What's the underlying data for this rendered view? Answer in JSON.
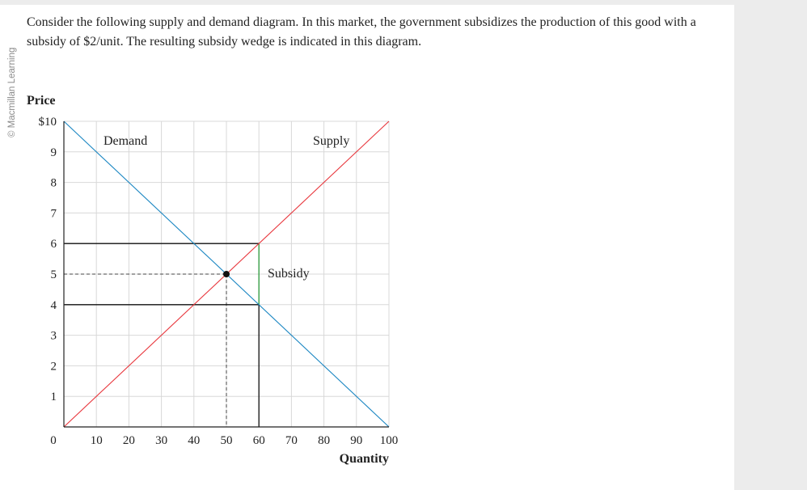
{
  "watermark": "© Macmillan Learning",
  "question": "Consider the following supply and demand diagram. In this market, the government subsidizes the production of this good with a subsidy of $2/unit. The resulting subsidy wedge is indicated in this diagram.",
  "colors": {
    "demand": "#1a86c2",
    "supply": "#e8363c",
    "wedge": "#2a9a3a",
    "grid": "#d8d8d8",
    "axis": "#222222"
  },
  "chart_data": {
    "type": "line",
    "title": "",
    "xlabel": "Quantity",
    "ylabel": "Price",
    "xlim": [
      0,
      100
    ],
    "ylim": [
      0,
      10
    ],
    "x_ticks": [
      0,
      10,
      20,
      30,
      40,
      50,
      60,
      70,
      80,
      90,
      100
    ],
    "x_tick_labels": [
      "0",
      "10",
      "20",
      "30",
      "40",
      "50",
      "60",
      "70",
      "80",
      "90",
      "100"
    ],
    "y_ticks": [
      1,
      2,
      3,
      4,
      5,
      6,
      7,
      8,
      9,
      10
    ],
    "y_tick_labels": [
      "1",
      "2",
      "3",
      "4",
      "5",
      "6",
      "7",
      "8",
      "9",
      "$10"
    ],
    "grid": true,
    "series": [
      {
        "name": "Demand",
        "color": "#1a86c2",
        "x": [
          0,
          100
        ],
        "y": [
          10,
          0
        ]
      },
      {
        "name": "Supply",
        "color": "#e8363c",
        "x": [
          0,
          100
        ],
        "y": [
          0,
          10
        ]
      }
    ],
    "equilibrium": {
      "x": 50,
      "y": 5
    },
    "subsidy": {
      "label": "Subsidy",
      "amount": 2,
      "quantity": 60,
      "price_received": 6,
      "price_paid": 4
    }
  }
}
